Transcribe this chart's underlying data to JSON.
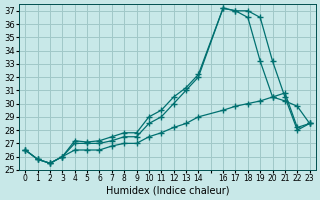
{
  "xlabel": "Humidex (Indice chaleur)",
  "bg_color": "#c8e8e8",
  "grid_color": "#a0c8c8",
  "line_color": "#007070",
  "ylim": [
    25,
    37.5
  ],
  "xlim": [
    -0.5,
    23.5
  ],
  "yticks": [
    25,
    26,
    27,
    28,
    29,
    30,
    31,
    32,
    33,
    34,
    35,
    36,
    37
  ],
  "xticks": [
    0,
    1,
    2,
    3,
    4,
    5,
    6,
    7,
    8,
    9,
    10,
    11,
    12,
    13,
    14,
    15,
    16,
    17,
    18,
    19,
    20,
    21,
    22,
    23
  ],
  "xtick_labels": [
    "0",
    "1",
    "2",
    "3",
    "4",
    "5",
    "6",
    "7",
    "8",
    "9",
    "10",
    "11",
    "12",
    "13",
    "14",
    "",
    "16",
    "17",
    "18",
    "19",
    "20",
    "21",
    "22",
    "23"
  ],
  "series1_x": [
    0,
    1,
    2,
    3,
    4,
    5,
    6,
    7,
    8,
    9,
    10,
    11,
    12,
    13,
    14,
    16,
    17,
    18,
    19,
    20,
    21,
    22,
    23
  ],
  "series1_y": [
    26.5,
    25.8,
    25.5,
    26.0,
    27.2,
    27.1,
    27.2,
    27.5,
    27.8,
    27.8,
    29.0,
    29.5,
    30.5,
    31.2,
    32.2,
    37.2,
    37.0,
    37.0,
    36.5,
    33.2,
    30.5,
    28.0,
    28.5
  ],
  "series2_x": [
    0,
    1,
    2,
    3,
    4,
    5,
    6,
    7,
    8,
    9,
    10,
    11,
    12,
    13,
    14,
    16,
    17,
    18,
    19,
    20,
    21,
    22,
    23
  ],
  "series2_y": [
    26.5,
    25.8,
    25.5,
    26.0,
    27.0,
    27.0,
    27.0,
    27.2,
    27.5,
    27.5,
    28.5,
    29.0,
    30.0,
    31.0,
    32.0,
    37.2,
    37.0,
    36.5,
    33.2,
    30.5,
    30.2,
    29.8,
    28.5
  ],
  "series3_x": [
    0,
    1,
    2,
    3,
    4,
    5,
    6,
    7,
    8,
    9,
    10,
    11,
    12,
    13,
    14,
    16,
    17,
    18,
    19,
    20,
    21,
    22,
    23
  ],
  "series3_y": [
    26.5,
    25.8,
    25.5,
    26.0,
    26.5,
    26.5,
    26.5,
    26.8,
    27.0,
    27.0,
    27.5,
    27.8,
    28.2,
    28.5,
    29.0,
    29.5,
    29.8,
    30.0,
    30.2,
    30.5,
    30.8,
    28.2,
    28.5
  ]
}
